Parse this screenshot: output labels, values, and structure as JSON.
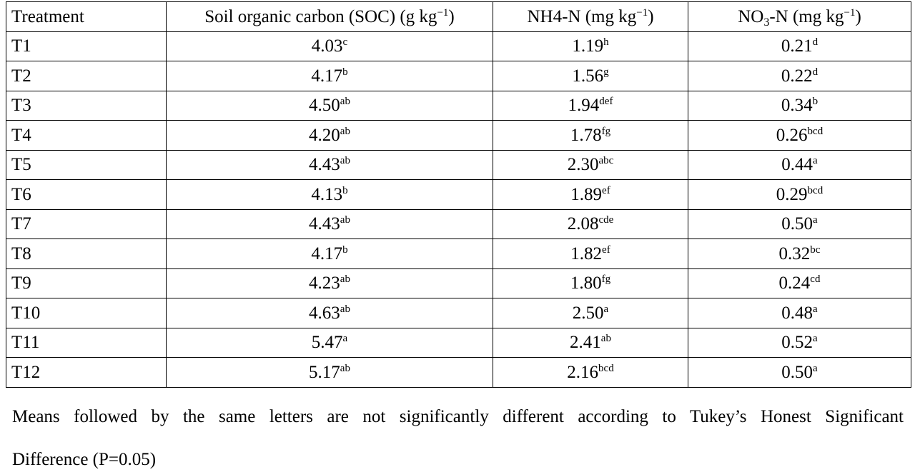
{
  "table": {
    "headers": {
      "treatment": "Treatment",
      "soc": {
        "text": "Soil organic carbon (SOC) (g kg",
        "sup": "−1",
        "tail": ")"
      },
      "nh4": {
        "text": "NH4-N (mg kg",
        "sup": "−1",
        "tail": ")"
      },
      "no3": {
        "pre": "NO",
        "sub": "3",
        "text": "-N (mg kg",
        "sup": "−1",
        "tail": ")"
      }
    },
    "rows": [
      {
        "treatment": "T1",
        "soc": {
          "v": "4.03",
          "l": "c"
        },
        "nh4": {
          "v": "1.19",
          "l": "h"
        },
        "no3": {
          "v": "0.21",
          "l": "d"
        }
      },
      {
        "treatment": "T2",
        "soc": {
          "v": "4.17",
          "l": "b"
        },
        "nh4": {
          "v": "1.56",
          "l": "g"
        },
        "no3": {
          "v": "0.22",
          "l": "d"
        }
      },
      {
        "treatment": "T3",
        "soc": {
          "v": "4.50",
          "l": "ab"
        },
        "nh4": {
          "v": "1.94",
          "l": "def"
        },
        "no3": {
          "v": "0.34",
          "l": "b"
        }
      },
      {
        "treatment": "T4",
        "soc": {
          "v": "4.20",
          "l": "ab"
        },
        "nh4": {
          "v": "1.78",
          "l": "fg"
        },
        "no3": {
          "v": "0.26",
          "l": "bcd"
        }
      },
      {
        "treatment": "T5",
        "soc": {
          "v": "4.43",
          "l": "ab"
        },
        "nh4": {
          "v": "2.30",
          "l": "abc"
        },
        "no3": {
          "v": "0.44",
          "l": "a"
        }
      },
      {
        "treatment": "T6",
        "soc": {
          "v": "4.13",
          "l": "b"
        },
        "nh4": {
          "v": "1.89",
          "l": "ef"
        },
        "no3": {
          "v": "0.29",
          "l": "bcd"
        }
      },
      {
        "treatment": "T7",
        "soc": {
          "v": "4.43",
          "l": "ab"
        },
        "nh4": {
          "v": "2.08",
          "l": "cde"
        },
        "no3": {
          "v": "0.50",
          "l": "a"
        }
      },
      {
        "treatment": "T8",
        "soc": {
          "v": "4.17",
          "l": "b"
        },
        "nh4": {
          "v": "1.82",
          "l": "ef"
        },
        "no3": {
          "v": "0.32",
          "l": "bc"
        }
      },
      {
        "treatment": "T9",
        "soc": {
          "v": "4.23",
          "l": "ab"
        },
        "nh4": {
          "v": "1.80",
          "l": "fg"
        },
        "no3": {
          "v": "0.24",
          "l": "cd"
        }
      },
      {
        "treatment": "T10",
        "soc": {
          "v": "4.63",
          "l": "ab"
        },
        "nh4": {
          "v": "2.50",
          "l": "a"
        },
        "no3": {
          "v": "0.48",
          "l": "a"
        }
      },
      {
        "treatment": "T11",
        "soc": {
          "v": "5.47",
          "l": "a"
        },
        "nh4": {
          "v": "2.41",
          "l": "ab"
        },
        "no3": {
          "v": "0.52",
          "l": "a"
        }
      },
      {
        "treatment": "T12",
        "soc": {
          "v": "5.17",
          "l": "ab"
        },
        "nh4": {
          "v": "2.16",
          "l": "bcd"
        },
        "no3": {
          "v": "0.50",
          "l": "a"
        }
      }
    ]
  },
  "footnote": {
    "line1": "Means followed by the same letters are not significantly different according to Tukey’s Honest Significant",
    "line2": "Difference (P=0.05)"
  }
}
